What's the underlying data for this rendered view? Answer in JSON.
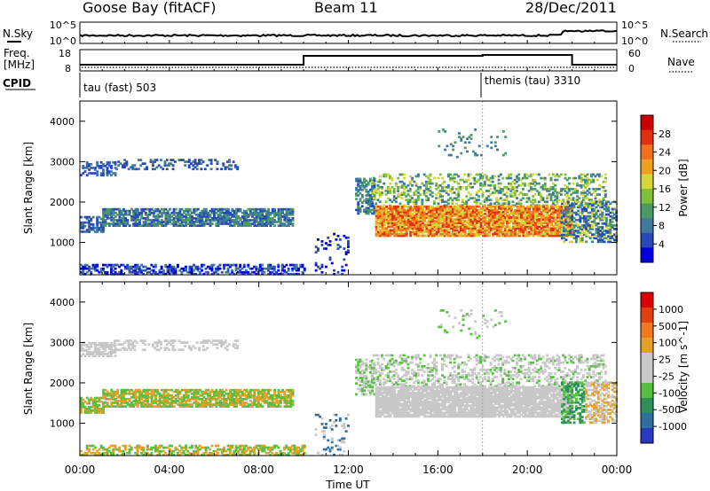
{
  "header": {
    "station": "Goose Bay (fitACF)",
    "beam": "Beam 11",
    "date": "28/Dec/2011"
  },
  "top_panels": {
    "nsky_label": "N.Sky",
    "nsky_ticks": [
      "10^5",
      "10^0"
    ],
    "nsearch_label": "N.Search",
    "nsearch_ticks": [
      "10^5",
      "10^0"
    ],
    "freq_label": "Freq.",
    "freq_unit": "[MHz]",
    "freq_ticks": [
      "18",
      "8"
    ],
    "nave_label": "Nave",
    "nave_ticks": [
      "60",
      "0"
    ],
    "cpid_label": "CPID",
    "cpid_segments": [
      {
        "start_hour": 0,
        "label": "tau (fast) 503"
      },
      {
        "start_hour": 18,
        "label": "themis (tau) 3310"
      }
    ],
    "freq_steps": [
      {
        "from": 0,
        "to": 10,
        "level": "low"
      },
      {
        "from": 10,
        "to": 18,
        "level": "high"
      },
      {
        "from": 18,
        "to": 22,
        "level": "higher"
      },
      {
        "from": 22,
        "to": 24,
        "level": "low"
      }
    ]
  },
  "chart_data": [
    {
      "type": "heatmap",
      "name": "power",
      "ylabel": "Slant Range [km]",
      "yticks": [
        1000,
        2000,
        3000,
        4000
      ],
      "ylim": [
        200,
        4500
      ],
      "xlim": [
        0,
        24
      ],
      "colorbar_label": "Power [dB]",
      "colorbar_ticks": [
        "28",
        "24",
        "20",
        "16",
        "12",
        "8",
        "4"
      ],
      "colors": [
        "#0000dd",
        "#2848b8",
        "#3f7a9e",
        "#4a9a66",
        "#7fbf3a",
        "#d6d63a",
        "#f0a020",
        "#f07020",
        "#e03010",
        "#cc0000"
      ]
    },
    {
      "type": "heatmap",
      "name": "velocity",
      "ylabel": "Slant Range [km]",
      "yticks": [
        1000,
        2000,
        3000,
        4000
      ],
      "ylim": [
        200,
        4500
      ],
      "xlim": [
        0,
        24
      ],
      "colorbar_label": "Velocity [m s^-1]",
      "colorbar_ticks": [
        "1000",
        "500",
        "100",
        "25",
        "-25",
        "-100",
        "-500",
        "-1000"
      ],
      "colors": [
        "#2838c0",
        "#2f6fa0",
        "#2f8f5a",
        "#56c040",
        "#c8c8c8",
        "#c8c8c8",
        "#e6a028",
        "#f07820",
        "#e04010",
        "#dd0000"
      ]
    }
  ],
  "xaxis": {
    "ticks": [
      "00:00",
      "04:00",
      "08:00",
      "12:00",
      "16:00",
      "20:00",
      "00:00"
    ],
    "label": "Time UT"
  }
}
